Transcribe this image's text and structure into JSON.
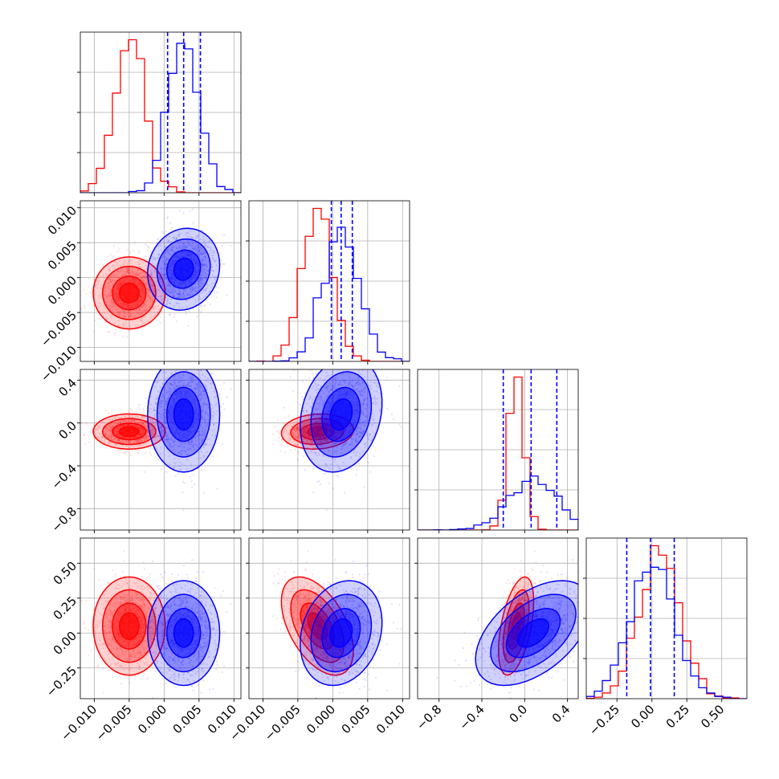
{
  "colors": {
    "series_a": "#ff0000",
    "series_b": "#0000ff",
    "grid": "#b0b0b0"
  },
  "chart_data": {
    "type": "corner",
    "grid": true,
    "legend": "none",
    "title": "",
    "parameters": [
      {
        "range": [
          -0.012,
          0.011
        ],
        "ticks": [
          -0.01,
          -0.005,
          0.0,
          0.005,
          0.01
        ],
        "tick_labels": [
          "−0.010",
          "−0.005",
          "0.000",
          "0.005",
          "0.010"
        ]
      },
      {
        "range": [
          -0.012,
          0.011
        ],
        "ticks": [
          -0.01,
          -0.005,
          0.0,
          0.005,
          0.01
        ],
        "tick_labels": [
          "−0.010",
          "−0.005",
          "0.000",
          "0.005",
          "0.010"
        ]
      },
      {
        "range": [
          -1.0,
          0.5
        ],
        "ticks": [
          -0.8,
          -0.4,
          0.0,
          0.4
        ],
        "tick_labels": [
          "−0.8",
          "−0.4",
          "0.0",
          "0.4"
        ]
      },
      {
        "range": [
          -0.47,
          0.68
        ],
        "ticks": [
          -0.25,
          0.0,
          0.25,
          0.5
        ],
        "tick_labels": [
          "−0.25",
          "0.00",
          "0.25",
          "0.50"
        ]
      }
    ],
    "series": [
      {
        "color": "#ff0000",
        "mean": [
          -0.005,
          -0.0022,
          -0.08,
          0.05
        ],
        "sd": [
          0.0022,
          0.0022,
          0.07,
          0.15
        ],
        "corr": [
          [
            1,
            0,
            0,
            0
          ],
          [
            0,
            1,
            0.1,
            -0.5
          ],
          [
            0,
            0.1,
            1,
            0.5
          ],
          [
            0,
            -0.5,
            0.5,
            1
          ]
        ]
      },
      {
        "color": "#0000ff",
        "mean": [
          0.0028,
          0.0012,
          0.08,
          0.0
        ],
        "sd": [
          0.0022,
          0.0025,
          0.23,
          0.16
        ],
        "corr": [
          [
            1,
            0.1,
            0,
            0
          ],
          [
            0.1,
            1,
            0.2,
            0.2
          ],
          [
            0,
            0.2,
            1,
            0.5
          ],
          [
            0,
            0.2,
            0.5,
            1
          ]
        ]
      }
    ],
    "quantiles": [
      {
        "parameter": 0,
        "values": [
          0.0005,
          0.0028,
          0.0052
        ]
      },
      {
        "parameter": 1,
        "values": [
          -0.0002,
          0.0012,
          0.0028
        ]
      },
      {
        "parameter": 2,
        "values": [
          -0.2,
          0.06,
          0.3
        ]
      },
      {
        "parameter": 3,
        "values": [
          -0.18,
          -0.01,
          0.16
        ]
      }
    ]
  }
}
